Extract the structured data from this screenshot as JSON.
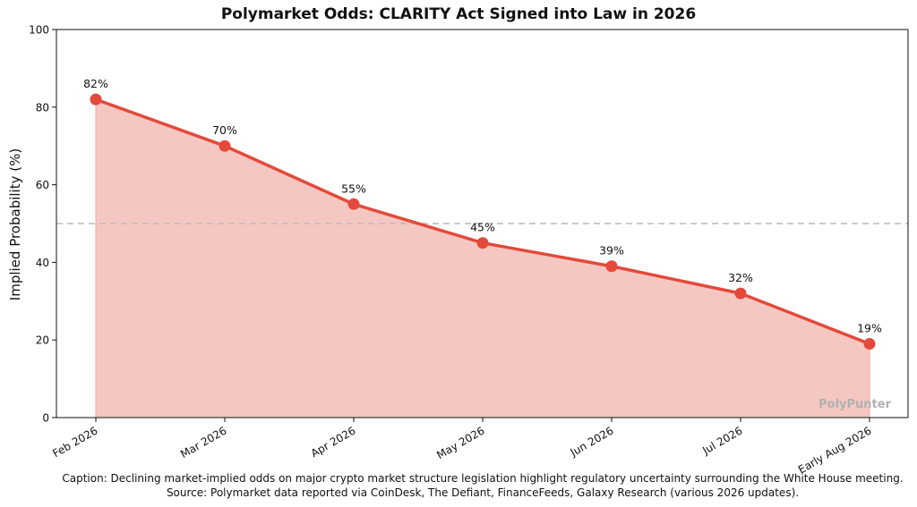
{
  "chart_data": {
    "type": "area",
    "title": "Polymarket Odds: CLARITY Act Signed into Law in 2026",
    "ylabel": "Implied Probability (%)",
    "xlabel": "",
    "categories": [
      "Feb 2026",
      "Mar 2026",
      "Apr 2026",
      "May 2026",
      "Jun 2026",
      "Jul 2026",
      "Early Aug 2026"
    ],
    "series": [
      {
        "values": [
          82,
          70,
          55,
          45,
          39,
          32,
          19
        ]
      }
    ],
    "data_labels": [
      "82%",
      "70%",
      "55%",
      "45%",
      "39%",
      "32%",
      "19%"
    ],
    "ylim": [
      0,
      100
    ],
    "yticks": [
      0,
      20,
      40,
      60,
      80,
      100
    ],
    "reference_line": 50,
    "grid": false,
    "colors": {
      "line": "#e34a3b",
      "fill": "#f5c7c2",
      "reference": "#bbbbbb"
    },
    "watermark": "PolyPunter"
  },
  "caption": "Caption: Declining market-implied odds on major crypto market structure legislation highlight regulatory uncertainty surrounding the White House meeting.",
  "source": "Source: Polymarket data reported via CoinDesk, The Defiant, FinanceFeeds, Galaxy Research (various 2026 updates)."
}
